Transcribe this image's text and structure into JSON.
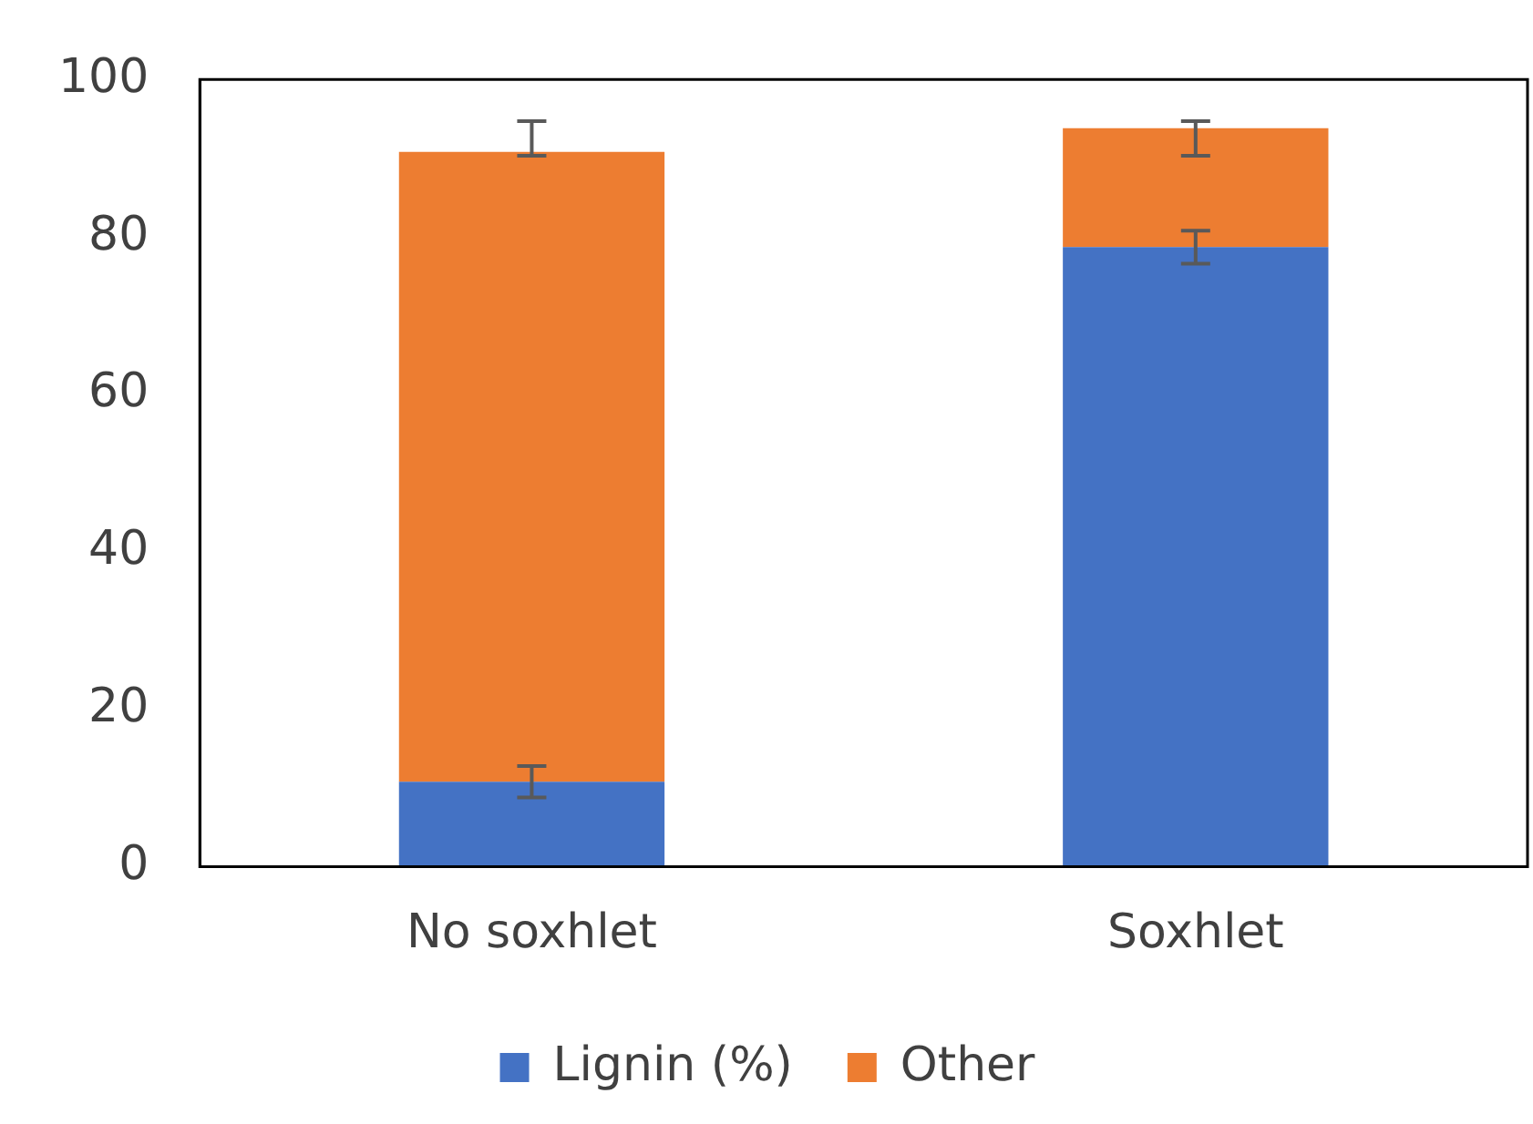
{
  "chart_data": {
    "type": "bar",
    "stacked": true,
    "categories": [
      "No soxhlet",
      "Soxhlet"
    ],
    "series": [
      {
        "name": "Lignin (%)",
        "color": "#4472c4",
        "values": [
          10.8,
          78.7
        ],
        "errors": [
          2,
          2.1
        ]
      },
      {
        "name": "Other",
        "color": "#ed7d31",
        "values": [
          80,
          15.1
        ],
        "errors": [
          [
            90.3,
            94.7
          ],
          [
            90.3,
            94.7
          ]
        ]
      }
    ],
    "ylim": [
      0,
      100
    ],
    "yticks": [
      0,
      20,
      40,
      60,
      80,
      100
    ],
    "grid": false,
    "legend": "bottom"
  }
}
